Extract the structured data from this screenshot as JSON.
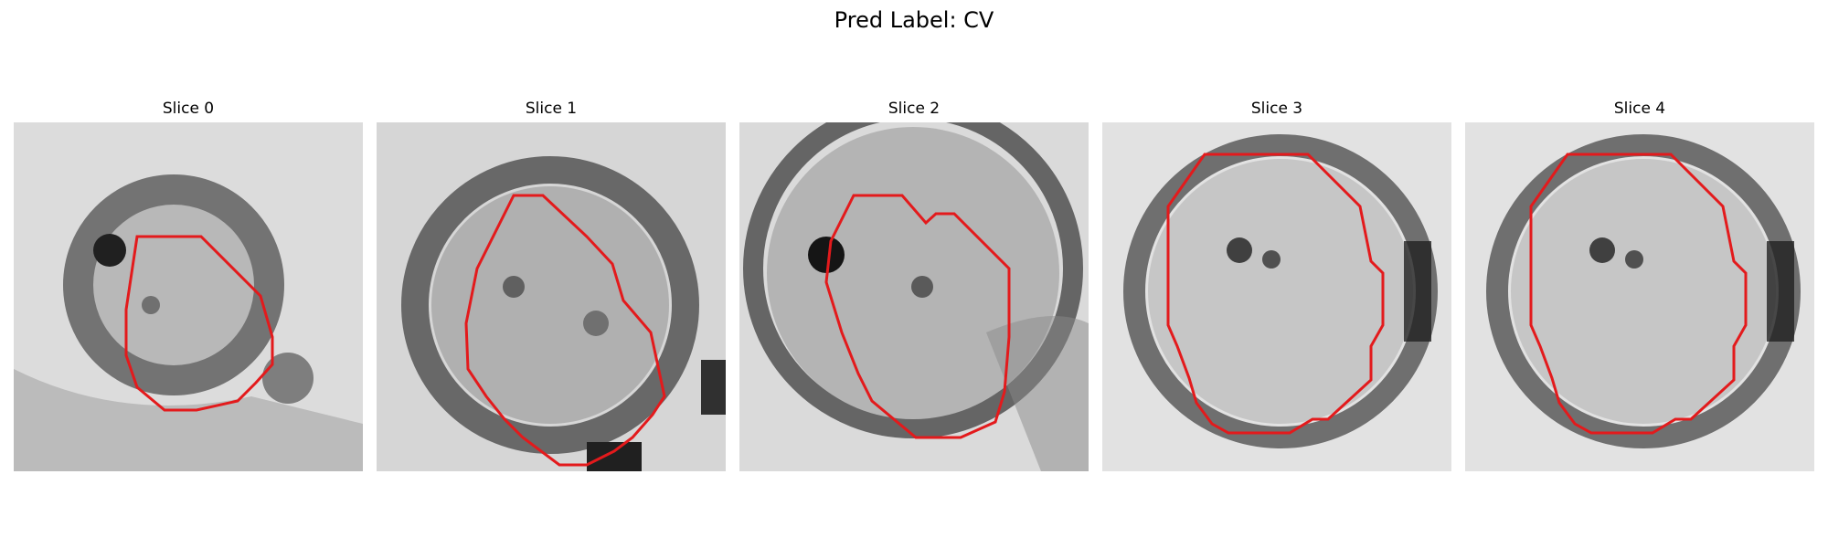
{
  "figure": {
    "title": "Pred Label: CV"
  },
  "panels": [
    {
      "title": "Slice 0"
    },
    {
      "title": "Slice 1"
    },
    {
      "title": "Slice 2"
    },
    {
      "title": "Slice 3"
    },
    {
      "title": "Slice 4"
    }
  ],
  "colors": {
    "contour": "#e31a1c",
    "background": "#ffffff"
  }
}
